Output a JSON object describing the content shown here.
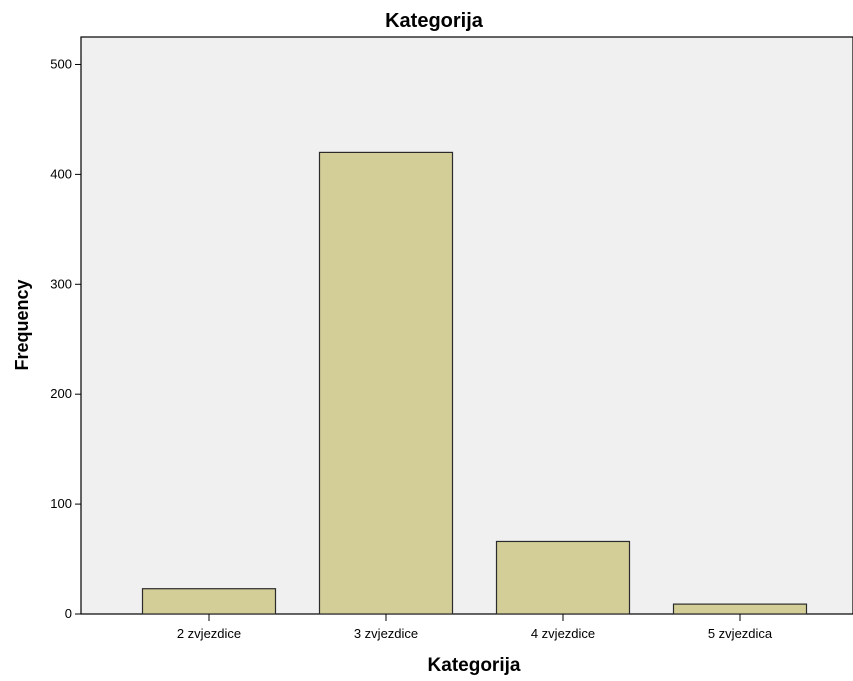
{
  "chart_data": {
    "type": "bar",
    "title": "Kategorija",
    "xlabel": "Kategorija",
    "ylabel": "Frequency",
    "categories": [
      "2 zvjezdice",
      "3 zvjezdice",
      "4 zvjezdice",
      "5 zvjezdica"
    ],
    "values": [
      23,
      420,
      66,
      9
    ],
    "ylim": [
      0,
      525
    ],
    "yticks": [
      "0",
      "100",
      "200",
      "300",
      "400",
      "500"
    ],
    "grid": false,
    "colors": {
      "bar_fill": "#d3ce97",
      "bar_stroke": "#2b2b2b",
      "plot_background": "#f0f0f0",
      "axis": "#000000"
    }
  }
}
